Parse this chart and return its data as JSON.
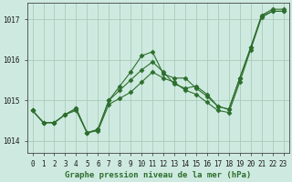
{
  "title": "Graphe pression niveau de la mer (hPa)",
  "background_color": "#ceeae0",
  "grid_color": "#aaccb8",
  "line_color": "#2d6e2d",
  "xlim": [
    -0.5,
    23.5
  ],
  "ylim": [
    1013.7,
    1017.4
  ],
  "yticks": [
    1014,
    1015,
    1016,
    1017
  ],
  "xticks": [
    0,
    1,
    2,
    3,
    4,
    5,
    6,
    7,
    8,
    9,
    10,
    11,
    12,
    13,
    14,
    15,
    16,
    17,
    18,
    19,
    20,
    21,
    22,
    23
  ],
  "series": [
    [
      1014.75,
      1014.45,
      1014.45,
      1014.65,
      1014.75,
      1014.2,
      1014.25,
      1014.9,
      1015.05,
      1015.2,
      1015.45,
      1015.7,
      1015.55,
      1015.45,
      1015.25,
      1015.15,
      1014.95,
      1014.75,
      1014.7,
      1015.45,
      1016.25,
      1017.05,
      1017.2,
      1017.2
    ],
    [
      1014.75,
      1014.45,
      1014.45,
      1014.65,
      1014.8,
      1014.2,
      1014.28,
      1015.0,
      1015.25,
      1015.5,
      1015.75,
      1015.95,
      1015.7,
      1015.4,
      1015.3,
      1015.35,
      1015.15,
      1014.85,
      1014.78,
      1015.55,
      1016.3,
      1017.08,
      1017.2,
      1017.2
    ],
    [
      1014.75,
      1014.45,
      1014.45,
      1014.65,
      1014.8,
      1014.2,
      1014.28,
      1015.0,
      1015.35,
      1015.7,
      1016.1,
      1016.2,
      1015.65,
      1015.55,
      1015.55,
      1015.3,
      1015.1,
      1014.85,
      1014.78,
      1015.55,
      1016.3,
      1017.1,
      1017.25,
      1017.25
    ]
  ],
  "marker": "D",
  "markersize": 2.5,
  "linewidth": 0.8,
  "tick_fontsize": 5.5,
  "xlabel_fontsize": 6.5
}
